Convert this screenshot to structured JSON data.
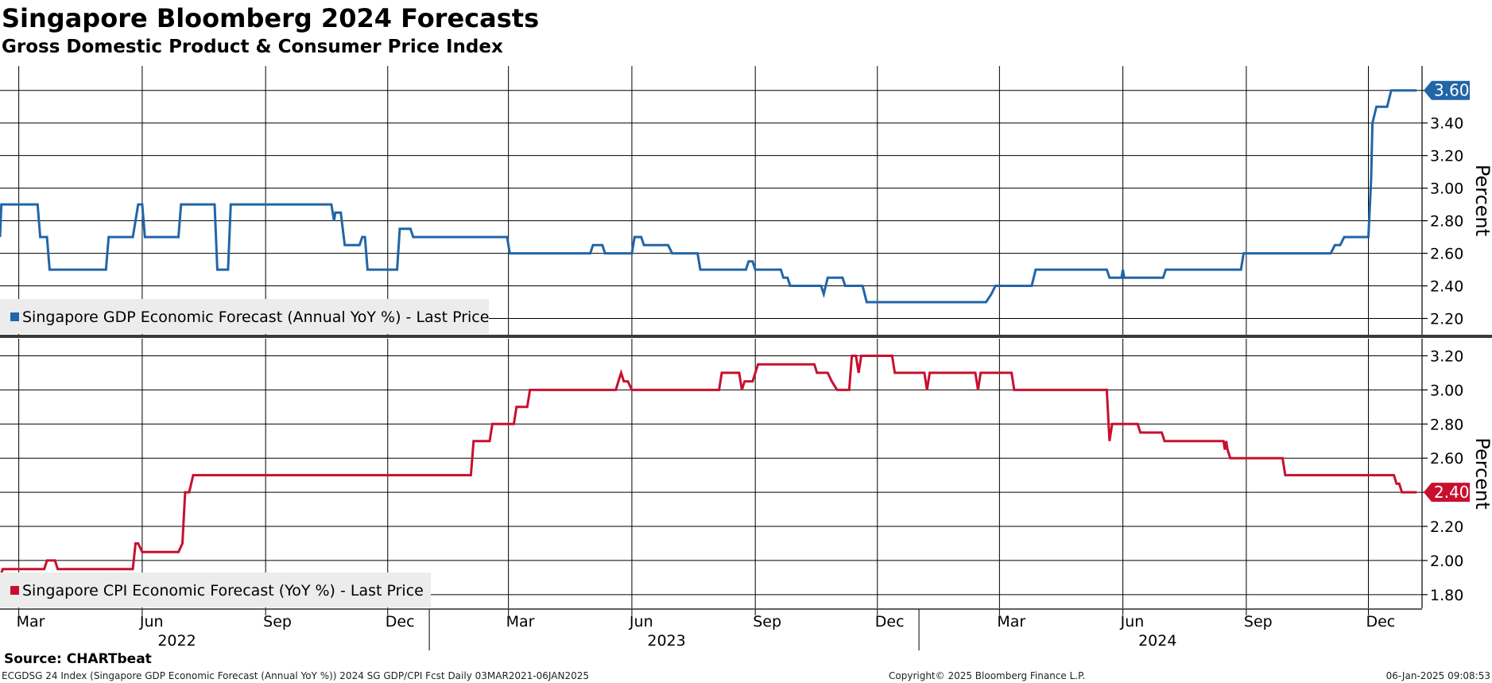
{
  "header": {
    "title": "Singapore Bloomberg 2024 Forecasts",
    "subtitle": "Gross Domestic Product & Consumer Price Index"
  },
  "footer": {
    "source": "Source: CHARTbeat",
    "description": "ECGDSG 24 Index (Singapore GDP Economic Forecast (Annual YoY %)) 2024 SG GDP/CPI Fcst  Daily 03MAR2021-06JAN2025",
    "copyright": "Copyright© 2025 Bloomberg Finance L.P.",
    "timestamp": "06-Jan-2025 09:08:53"
  },
  "chart_data": [
    {
      "type": "line",
      "x_axis": {
        "month_ticks": [
          "Mar",
          "Jun",
          "Sep",
          "Dec",
          "Mar",
          "Jun",
          "Sep",
          "Dec",
          "Mar",
          "Jun",
          "Sep",
          "Dec"
        ],
        "year_labels": [
          "2022",
          "2023",
          "2024"
        ],
        "xlim": [
          "2022-02-15",
          "2025-01-10"
        ]
      },
      "ylabel": "Percent",
      "ylim": [
        2.1,
        3.75
      ],
      "yticks": [
        "2.20",
        "2.40",
        "2.60",
        "2.80",
        "3.00",
        "3.20",
        "3.40",
        "3.60"
      ],
      "grid": true,
      "legend_position": "bottom-left",
      "series": [
        {
          "name": "Singapore GDP Economic Forecast (Annual YoY %) - Last Price",
          "color": "#2265a8",
          "last_value_label": "3.60",
          "points": [
            [
              "2022-02-15",
              2.7
            ],
            [
              "2022-02-16",
              2.9
            ],
            [
              "2022-03-15",
              2.9
            ],
            [
              "2022-03-17",
              2.7
            ],
            [
              "2022-03-22",
              2.7
            ],
            [
              "2022-03-24",
              2.5
            ],
            [
              "2022-05-05",
              2.5
            ],
            [
              "2022-05-07",
              2.7
            ],
            [
              "2022-05-25",
              2.7
            ],
            [
              "2022-05-27",
              2.8
            ],
            [
              "2022-05-29",
              2.9
            ],
            [
              "2022-06-01",
              2.9
            ],
            [
              "2022-06-03",
              2.7
            ],
            [
              "2022-06-28",
              2.7
            ],
            [
              "2022-06-30",
              2.9
            ],
            [
              "2022-07-25",
              2.9
            ],
            [
              "2022-07-27",
              2.5
            ],
            [
              "2022-08-04",
              2.5
            ],
            [
              "2022-08-06",
              2.9
            ],
            [
              "2022-10-20",
              2.9
            ],
            [
              "2022-10-22",
              2.8
            ],
            [
              "2022-10-23",
              2.85
            ],
            [
              "2022-10-27",
              2.85
            ],
            [
              "2022-10-30",
              2.65
            ],
            [
              "2022-11-10",
              2.65
            ],
            [
              "2022-11-12",
              2.7
            ],
            [
              "2022-11-14",
              2.7
            ],
            [
              "2022-11-16",
              2.5
            ],
            [
              "2022-12-08",
              2.5
            ],
            [
              "2022-12-10",
              2.75
            ],
            [
              "2022-12-18",
              2.75
            ],
            [
              "2022-12-20",
              2.7
            ],
            [
              "2023-02-28",
              2.7
            ],
            [
              "2023-03-02",
              2.6
            ],
            [
              "2023-05-01",
              2.6
            ],
            [
              "2023-05-03",
              2.65
            ],
            [
              "2023-05-10",
              2.65
            ],
            [
              "2023-05-12",
              2.6
            ],
            [
              "2023-06-01",
              2.6
            ],
            [
              "2023-06-03",
              2.7
            ],
            [
              "2023-06-08",
              2.7
            ],
            [
              "2023-06-10",
              2.65
            ],
            [
              "2023-06-28",
              2.65
            ],
            [
              "2023-07-01",
              2.6
            ],
            [
              "2023-07-20",
              2.6
            ],
            [
              "2023-07-22",
              2.5
            ],
            [
              "2023-08-25",
              2.5
            ],
            [
              "2023-08-27",
              2.55
            ],
            [
              "2023-08-30",
              2.55
            ],
            [
              "2023-09-01",
              2.5
            ],
            [
              "2023-09-20",
              2.5
            ],
            [
              "2023-09-22",
              2.45
            ],
            [
              "2023-09-25",
              2.45
            ],
            [
              "2023-09-27",
              2.4
            ],
            [
              "2023-10-20",
              2.4
            ],
            [
              "2023-10-22",
              2.35
            ],
            [
              "2023-10-25",
              2.45
            ],
            [
              "2023-11-05",
              2.45
            ],
            [
              "2023-11-07",
              2.4
            ],
            [
              "2023-11-20",
              2.4
            ],
            [
              "2023-11-23",
              2.3
            ],
            [
              "2024-02-20",
              2.3
            ],
            [
              "2024-02-24",
              2.35
            ],
            [
              "2024-02-27",
              2.4
            ],
            [
              "2024-03-25",
              2.4
            ],
            [
              "2024-03-28",
              2.5
            ],
            [
              "2024-05-20",
              2.5
            ],
            [
              "2024-05-22",
              2.45
            ],
            [
              "2024-05-31",
              2.45
            ],
            [
              "2024-06-01",
              2.5
            ],
            [
              "2024-06-02",
              2.45
            ],
            [
              "2024-07-01",
              2.45
            ],
            [
              "2024-07-03",
              2.5
            ],
            [
              "2024-08-28",
              2.5
            ],
            [
              "2024-08-30",
              2.6
            ],
            [
              "2024-11-03",
              2.6
            ],
            [
              "2024-11-06",
              2.65
            ],
            [
              "2024-11-10",
              2.65
            ],
            [
              "2024-11-13",
              2.7
            ],
            [
              "2024-12-01",
              2.7
            ],
            [
              "2024-12-03",
              3.05
            ],
            [
              "2024-12-04",
              3.4
            ],
            [
              "2024-12-07",
              3.5
            ],
            [
              "2024-12-15",
              3.5
            ],
            [
              "2024-12-18",
              3.6
            ],
            [
              "2025-01-06",
              3.6
            ]
          ]
        }
      ]
    },
    {
      "type": "line",
      "x_axis": {
        "month_ticks": [
          "Mar",
          "Jun",
          "Sep",
          "Dec",
          "Mar",
          "Jun",
          "Sep",
          "Dec",
          "Mar",
          "Jun",
          "Sep",
          "Dec"
        ],
        "year_labels": [
          "2022",
          "2023",
          "2024"
        ],
        "xlim": [
          "2022-02-15",
          "2025-01-10"
        ]
      },
      "ylabel": "Percent",
      "ylim": [
        1.72,
        3.3
      ],
      "yticks": [
        "1.80",
        "2.00",
        "2.20",
        "2.40",
        "2.60",
        "2.80",
        "3.00",
        "3.20"
      ],
      "grid": true,
      "legend_position": "bottom-left",
      "series": [
        {
          "name": "Singapore CPI Economic Forecast (YoY %) - Last Price",
          "color": "#c8102e",
          "last_value_label": "2.40",
          "points": [
            [
              "2022-02-15",
              1.9
            ],
            [
              "2022-02-17",
              1.95
            ],
            [
              "2022-03-20",
              1.95
            ],
            [
              "2022-03-22",
              2.0
            ],
            [
              "2022-03-28",
              2.0
            ],
            [
              "2022-03-30",
              1.95
            ],
            [
              "2022-05-25",
              1.95
            ],
            [
              "2022-05-27",
              2.1
            ],
            [
              "2022-05-29",
              2.1
            ],
            [
              "2022-06-01",
              2.05
            ],
            [
              "2022-06-28",
              2.05
            ],
            [
              "2022-07-01",
              2.1
            ],
            [
              "2022-07-03",
              2.4
            ],
            [
              "2022-07-06",
              2.4
            ],
            [
              "2022-07-09",
              2.5
            ],
            [
              "2023-02-01",
              2.5
            ],
            [
              "2023-02-03",
              2.7
            ],
            [
              "2023-02-15",
              2.7
            ],
            [
              "2023-02-17",
              2.8
            ],
            [
              "2023-03-05",
              2.8
            ],
            [
              "2023-03-07",
              2.9
            ],
            [
              "2023-03-15",
              2.9
            ],
            [
              "2023-03-17",
              3.0
            ],
            [
              "2023-05-20",
              3.0
            ],
            [
              "2023-05-22",
              3.05
            ],
            [
              "2023-05-24",
              3.1
            ],
            [
              "2023-05-26",
              3.05
            ],
            [
              "2023-05-29",
              3.05
            ],
            [
              "2023-06-01",
              3.0
            ],
            [
              "2023-08-05",
              3.0
            ],
            [
              "2023-08-07",
              3.1
            ],
            [
              "2023-08-20",
              3.1
            ],
            [
              "2023-08-22",
              3.0
            ],
            [
              "2023-08-24",
              3.05
            ],
            [
              "2023-08-30",
              3.05
            ],
            [
              "2023-09-01",
              3.1
            ],
            [
              "2023-09-03",
              3.15
            ],
            [
              "2023-10-15",
              3.15
            ],
            [
              "2023-10-17",
              3.1
            ],
            [
              "2023-10-25",
              3.1
            ],
            [
              "2023-10-28",
              3.05
            ],
            [
              "2023-11-01",
              3.0
            ],
            [
              "2023-11-10",
              3.0
            ],
            [
              "2023-11-12",
              3.2
            ],
            [
              "2023-11-15",
              3.2
            ],
            [
              "2023-11-17",
              3.1
            ],
            [
              "2023-11-19",
              3.2
            ],
            [
              "2023-12-12",
              3.2
            ],
            [
              "2023-12-14",
              3.1
            ],
            [
              "2024-01-05",
              3.1
            ],
            [
              "2024-01-07",
              3.0
            ],
            [
              "2024-01-09",
              3.1
            ],
            [
              "2024-02-12",
              3.1
            ],
            [
              "2024-02-14",
              3.0
            ],
            [
              "2024-02-16",
              3.1
            ],
            [
              "2024-03-10",
              3.1
            ],
            [
              "2024-03-12",
              3.0
            ],
            [
              "2024-05-20",
              3.0
            ],
            [
              "2024-05-22",
              2.7
            ],
            [
              "2024-05-24",
              2.8
            ],
            [
              "2024-06-12",
              2.8
            ],
            [
              "2024-06-14",
              2.75
            ],
            [
              "2024-06-30",
              2.75
            ],
            [
              "2024-07-02",
              2.7
            ],
            [
              "2024-08-15",
              2.7
            ],
            [
              "2024-08-16",
              2.65
            ],
            [
              "2024-08-17",
              2.7
            ],
            [
              "2024-08-18",
              2.65
            ],
            [
              "2024-08-20",
              2.6
            ],
            [
              "2024-09-28",
              2.6
            ],
            [
              "2024-09-30",
              2.5
            ],
            [
              "2024-12-20",
              2.5
            ],
            [
              "2024-12-22",
              2.45
            ],
            [
              "2024-12-24",
              2.45
            ],
            [
              "2024-12-26",
              2.4
            ],
            [
              "2025-01-06",
              2.4
            ]
          ]
        }
      ]
    }
  ]
}
